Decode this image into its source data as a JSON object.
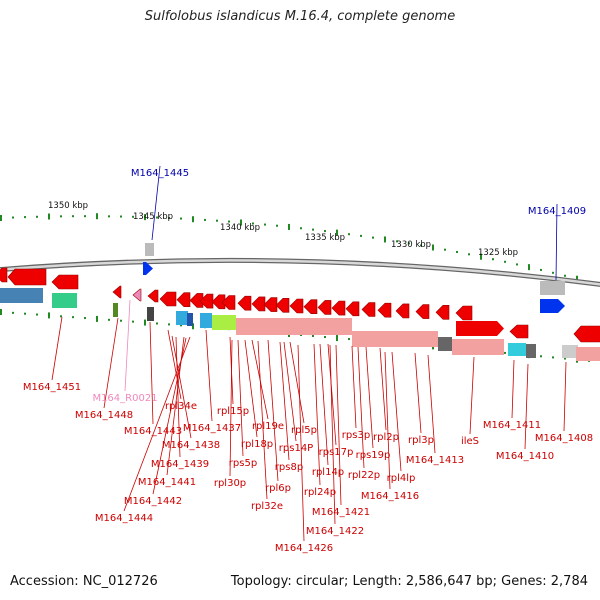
{
  "title": "Sulfolobus islandicus M.16.4, complete genome",
  "footer": {
    "accession": "Accession: NC_012726",
    "summary": "Topology: circular; Length: 2,586,647 bp; Genes: 2,784"
  },
  "scale_ticks": [
    "1350 kbp",
    "1345 kbp",
    "1340 kbp",
    "1335 kbp",
    "1330 kbp",
    "1325 kbp"
  ],
  "highlight_labels": [
    "M164_1445",
    "M164_1409"
  ],
  "rna_label": "M164_R0021",
  "gene_labels": [
    "M164_1451",
    "M164_1448",
    "M164_1443",
    "rpl34e",
    "M164_1438",
    "M164_1437",
    "rpl15p",
    "M164_1439",
    "M164_1441",
    "M164_1442",
    "M164_1444",
    "rpl19e",
    "rpl18p",
    "rps5p",
    "rpl30p",
    "rpl6p",
    "rpl32e",
    "rps14P",
    "rpl5p",
    "rps8p",
    "rps17p",
    "rpl14p",
    "rpl24p",
    "M164_1421",
    "M164_1422",
    "M164_1426",
    "rps3p",
    "rpl2p",
    "rps19p",
    "rpl22p",
    "rpl4lp",
    "M164_1416",
    "rpl3p",
    "M164_1413",
    "ileS",
    "M164_1411",
    "M164_1410",
    "M164_1408"
  ],
  "colors": {
    "backbone": "#999999",
    "gene_red": "#ee0000",
    "gene_pink": "#f2a0a0",
    "label_red": "#cc0000",
    "label_blue": "#0000aa",
    "label_pink": "#ee88bb",
    "dots": "#228822"
  }
}
